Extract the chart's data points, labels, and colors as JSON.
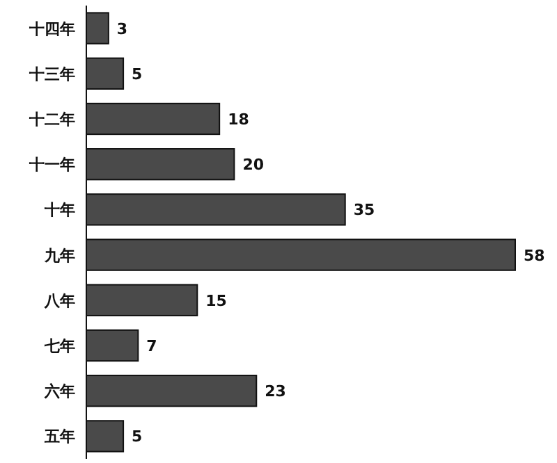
{
  "chart_data": {
    "type": "bar",
    "orientation": "horizontal",
    "categories": [
      "十四年",
      "十三年",
      "十二年",
      "十一年",
      "十年",
      "九年",
      "八年",
      "七年",
      "六年",
      "五年"
    ],
    "values": [
      3,
      5,
      18,
      20,
      35,
      58,
      15,
      7,
      23,
      5
    ],
    "color": "#4a4a4a",
    "data_labels": true
  }
}
